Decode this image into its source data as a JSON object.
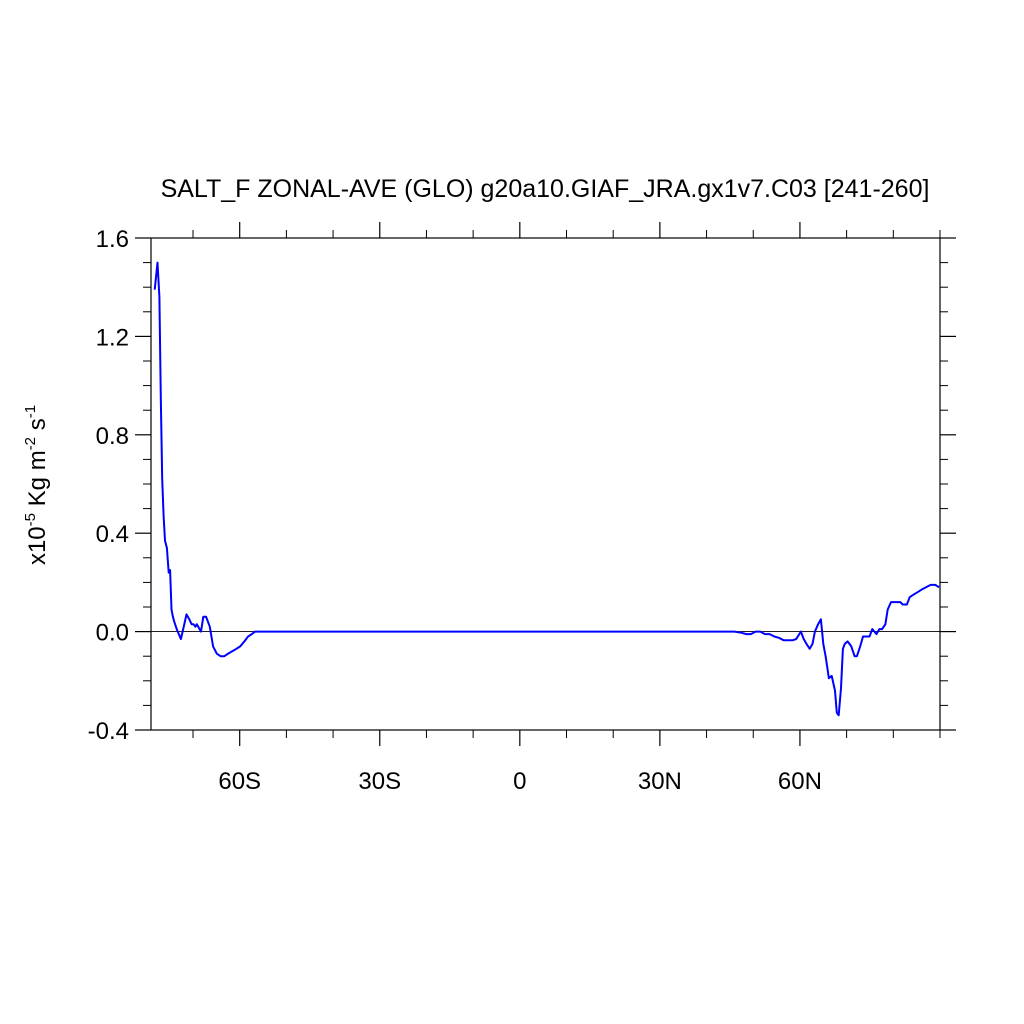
{
  "chart_data": {
    "type": "line",
    "title": "SALT_F ZONAL-AVE (GLO) g20a10.GIAF_JRA.gx1v7.C03 [241-260]",
    "ylabel": {
      "prefix": "x10",
      "prefix_exp": "-5",
      "unit_kg": " Kg m",
      "unit_m_exp": "-2",
      "unit_s": " s",
      "unit_s_exp": "-1"
    },
    "xlim": [
      -79,
      90
    ],
    "ylim": [
      -0.4,
      1.6
    ],
    "x_ticks": [
      {
        "value": -60,
        "label": "60S"
      },
      {
        "value": -30,
        "label": "30S"
      },
      {
        "value": 0,
        "label": "0"
      },
      {
        "value": 30,
        "label": "30N"
      },
      {
        "value": 60,
        "label": "60N"
      }
    ],
    "y_ticks": [
      {
        "value": -0.4,
        "label": "-0.4"
      },
      {
        "value": 0.0,
        "label": "0.0"
      },
      {
        "value": 0.4,
        "label": "0.4"
      },
      {
        "value": 0.8,
        "label": "0.8"
      },
      {
        "value": 1.2,
        "label": "1.2"
      },
      {
        "value": 1.6,
        "label": "1.6"
      }
    ],
    "reference_line": 0.0,
    "line_color": "#0000ff",
    "series": [
      {
        "x": [
          -78.2,
          -77.6,
          -77.2,
          -76.9,
          -76.6,
          -76.3,
          -76.0,
          -75.6,
          -75.2,
          -74.9,
          -74.6,
          -74.3,
          -74.0,
          -73.5,
          -72.6,
          -72.1,
          -71.4,
          -70.8,
          -70.3,
          -69.9,
          -69.5,
          -69.2,
          -68.6,
          -68.3,
          -67.8,
          -67.2,
          -66.4,
          -65.7,
          -64.9,
          -64.1,
          -63.3,
          -62.5,
          -61.6,
          -60.7,
          -59.9,
          -59.0,
          -58.2,
          -57.4,
          -56.7,
          -56.0,
          -55.0,
          -54.0,
          -50.0,
          -40.0,
          -30.0,
          -20.0,
          -10.0,
          0.0,
          10.0,
          20.0,
          30.0,
          40.0,
          45.0,
          46.0,
          47.5,
          48.5,
          49.5,
          50.5,
          51.5,
          52.5,
          53.5,
          54.5,
          55.5,
          56.5,
          57.5,
          58.5,
          59.2,
          60.2,
          60.8,
          61.4,
          62.1,
          62.7,
          63.2,
          63.9,
          64.5,
          65.0,
          65.5,
          66.2,
          66.8,
          67.5,
          67.9,
          68.3,
          68.8,
          69.2,
          69.6,
          70.2,
          71.0,
          71.7,
          72.2,
          72.9,
          73.5,
          74.1,
          74.9,
          75.5,
          76.4,
          77.0,
          77.6,
          78.3,
          78.8,
          79.5,
          80.2,
          81.5,
          82.0,
          82.9,
          83.5,
          84.3,
          85.2,
          86.0,
          87.0,
          88.0,
          89.0,
          89.8
        ],
        "y": [
          1.39,
          1.5,
          1.36,
          0.95,
          0.62,
          0.47,
          0.37,
          0.34,
          0.24,
          0.25,
          0.09,
          0.06,
          0.04,
          0.01,
          -0.03,
          0.01,
          0.07,
          0.05,
          0.03,
          0.03,
          0.02,
          0.03,
          0.01,
          0.0,
          0.06,
          0.06,
          0.02,
          -0.06,
          -0.09,
          -0.1,
          -0.1,
          -0.09,
          -0.08,
          -0.07,
          -0.06,
          -0.04,
          -0.02,
          -0.01,
          0.0,
          0.0,
          0.0,
          0.0,
          0.0,
          0.0,
          0.0,
          0.0,
          0.0,
          0.0,
          0.0,
          0.0,
          0.0,
          0.0,
          0.0,
          0.0,
          -0.005,
          -0.01,
          -0.01,
          0.0,
          0.0,
          -0.01,
          -0.01,
          -0.02,
          -0.025,
          -0.035,
          -0.035,
          -0.035,
          -0.03,
          0.0,
          -0.03,
          -0.05,
          -0.07,
          -0.05,
          0.0,
          0.03,
          0.05,
          -0.05,
          -0.1,
          -0.19,
          -0.18,
          -0.24,
          -0.33,
          -0.34,
          -0.23,
          -0.07,
          -0.05,
          -0.04,
          -0.06,
          -0.1,
          -0.1,
          -0.06,
          -0.02,
          -0.02,
          -0.02,
          0.01,
          -0.01,
          0.01,
          0.01,
          0.03,
          0.09,
          0.12,
          0.12,
          0.12,
          0.11,
          0.11,
          0.14,
          0.15,
          0.16,
          0.17,
          0.18,
          0.19,
          0.19,
          0.18
        ]
      }
    ]
  }
}
